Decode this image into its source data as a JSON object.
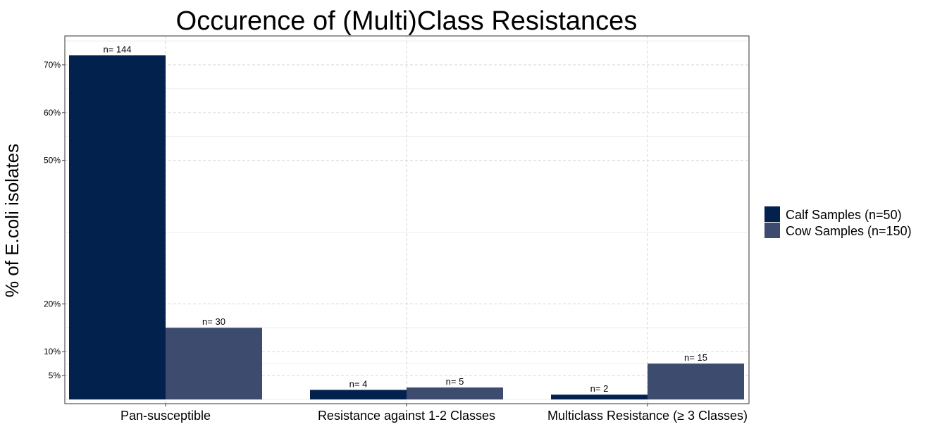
{
  "chart_data": {
    "type": "bar",
    "title": "Occurence of (Multi)Class Resistances",
    "xlabel": "",
    "ylabel": "% of E.coli isolates",
    "categories": [
      "Pan-susceptible",
      "Resistance against 1-2 Classes",
      "Multiclass Resistance (≥ 3 Classes)"
    ],
    "series": [
      {
        "name": "Calf Samples (n=50)",
        "color": "#03214d",
        "values": [
          72,
          2,
          1
        ],
        "labels": [
          "n= 144",
          "n= 4",
          "n= 2"
        ]
      },
      {
        "name": "Cow Samples (n=150)",
        "color": "#3d4c6e",
        "values": [
          15,
          2.5,
          7.5
        ],
        "labels": [
          "n= 30",
          "n= 5",
          "n= 15"
        ]
      }
    ],
    "y_ticks": [
      5,
      10,
      20,
      50,
      60,
      70
    ],
    "y_tick_labels": [
      "5%",
      "10%",
      "20%",
      "50%",
      "60%",
      "70%"
    ],
    "ylim": [
      0,
      75
    ],
    "grid": true,
    "legend_position": "right"
  }
}
